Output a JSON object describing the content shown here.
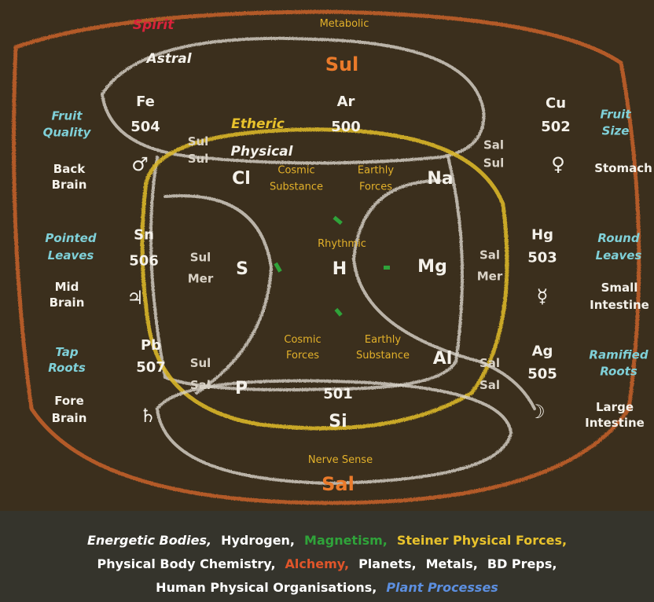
{
  "labels": [
    [
      "Spirit"
    ],
    [
      "Metabolic"
    ],
    [
      "Astral"
    ],
    [
      "Sul"
    ],
    [
      "Fruit",
      "Quality"
    ],
    [
      "Fe",
      "504"
    ],
    [
      "Ar",
      "500"
    ],
    [
      "Cu",
      "502"
    ],
    [
      "Fruit",
      "Size"
    ],
    [
      "Etheric"
    ],
    [
      "Sul",
      "Sul"
    ],
    [
      "Sal",
      "Sul"
    ],
    [
      "Physical"
    ],
    [
      "♂"
    ],
    [
      "♀"
    ],
    [
      "Back",
      "Brain"
    ],
    [
      "Stomach"
    ],
    [
      "Cl"
    ],
    [
      "Cosmic",
      "Substance"
    ],
    [
      "Earthly",
      "Forces"
    ],
    [
      "Na"
    ],
    [
      "Pointed",
      "Leaves"
    ],
    [
      "Sn",
      "506"
    ],
    [
      "Rhythmic"
    ],
    [
      "Hg",
      "503"
    ],
    [
      "Round",
      "Leaves"
    ],
    [
      "Sul",
      "Mer"
    ],
    [
      "S"
    ],
    [
      "H"
    ],
    [
      "Mg"
    ],
    [
      "Sal",
      "Mer"
    ],
    [
      "Mid",
      "Brain"
    ],
    [
      "♃"
    ],
    [
      "☿"
    ],
    [
      "Small",
      "Intestine"
    ],
    [
      "Cosmic",
      "Forces"
    ],
    [
      "Earthly",
      "Substance"
    ],
    [
      "Tap",
      "Roots"
    ],
    [
      "Pb",
      "507"
    ],
    [
      "Ag",
      "505"
    ],
    [
      "Ramified",
      "Roots"
    ],
    [
      "Al"
    ],
    [
      "Sul",
      "Sal"
    ],
    [
      "Sal",
      "Sal"
    ],
    [
      "P"
    ],
    [
      "501"
    ],
    [
      "Fore",
      "Brain"
    ],
    [
      "♄"
    ],
    [
      "☽"
    ],
    [
      "Large",
      "Intestine"
    ],
    [
      "Si"
    ],
    [
      "Nerve Sense"
    ],
    [
      "Sal"
    ]
  ],
  "legend": [
    [
      "Energetic Bodies,",
      "Hydrogen,",
      "Magnetism,",
      "Steiner Physical Forces,"
    ],
    [
      "Physical Body Chemistry,",
      "Alchemy,",
      "Planets,",
      "Metals,",
      "BD Preps,"
    ],
    [
      "Human Physical Organisations,",
      "Plant Processes"
    ]
  ]
}
